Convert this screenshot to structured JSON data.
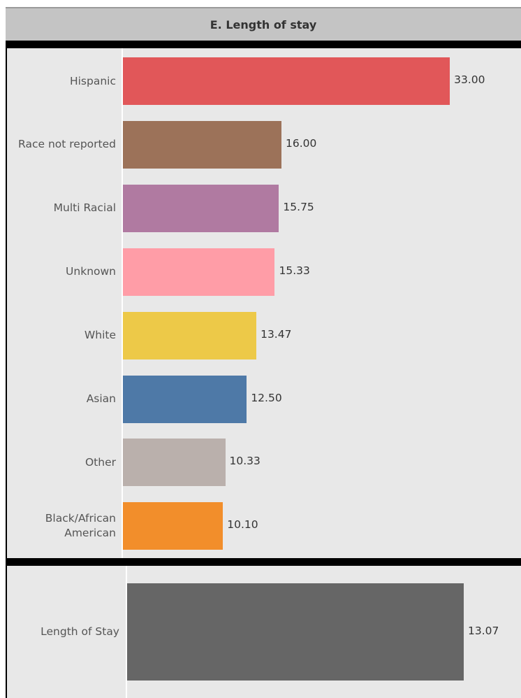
{
  "header": {
    "title": "E. Length of stay"
  },
  "chart_data": [
    {
      "type": "bar",
      "orientation": "horizontal",
      "categories": [
        "Hispanic",
        "Race not reported",
        "Multi Racial",
        "Unknown",
        "White",
        "Asian",
        "Other",
        "Black/African American"
      ],
      "values": [
        33.0,
        16.0,
        15.75,
        15.33,
        13.47,
        12.5,
        10.33,
        10.1
      ],
      "value_labels": [
        "33.00",
        "16.00",
        "15.75",
        "15.33",
        "13.47",
        "12.50",
        "10.33",
        "10.10"
      ],
      "colors": [
        "#e15759",
        "#9c7259",
        "#b07aa1",
        "#ff9da7",
        "#edc948",
        "#4e79a7",
        "#bab0ac",
        "#f28e2b"
      ],
      "xlim": [
        0,
        34.4
      ],
      "grid": false
    },
    {
      "type": "bar",
      "orientation": "horizontal",
      "categories": [
        "Length of Stay"
      ],
      "values": [
        13.07
      ],
      "value_labels": [
        "13.07"
      ],
      "colors": [
        "#666666"
      ],
      "xlim": [
        0,
        13.07
      ],
      "grid": false
    }
  ]
}
